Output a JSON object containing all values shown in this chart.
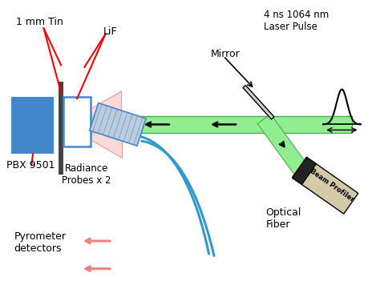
{
  "background_color": "#ffffff",
  "labels": {
    "tin": "1 mm Tin",
    "pbx": "PBX 9501",
    "lif": "LiF",
    "laser": "4 ns 1064 nm\nLaser Pulse",
    "mirror": "Mirror",
    "beam_profiler": "Beam Profiler",
    "radiance": "Radiance\nProbes x 2",
    "optical_fiber": "Optical\nFiber",
    "pyrometer": "Pyrometer\ndetectors"
  },
  "colors": {
    "green_beam": "#4daf4d",
    "green_beam_light": "#90ee90",
    "red_cone": "#f08080",
    "red_cone_light": "#ffcccc",
    "blue_box": "#4488cc",
    "blue_fiber": "#3399cc",
    "beam_profiler_body": "#d4c9a8",
    "lif_border": "#4488cc",
    "plate_color": "#444444",
    "mirror_color": "#cccccc",
    "red_arrow": "#f08080",
    "black": "#000000"
  }
}
